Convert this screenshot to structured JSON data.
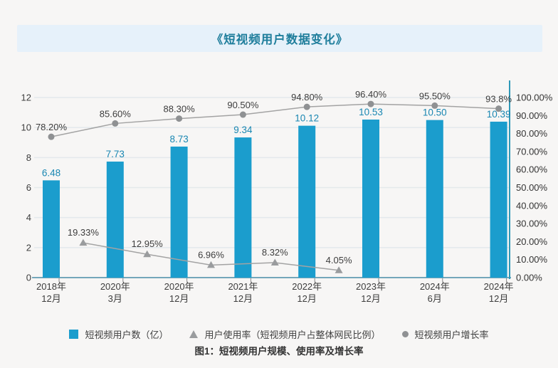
{
  "page": {
    "title": "《短视频用户数据变化》",
    "caption": "图1：短视频用户规模、使用率及增长率"
  },
  "colors": {
    "page_background": "#f7f6f5",
    "title_band_background": "#e6f1fa",
    "title_text": "#1f7e9c",
    "bar_fill": "#1b9dcd",
    "bar_value_label": "#1a87b2",
    "line_stroke": "#a3a3a3",
    "circle_marker": "#8f9193",
    "triangle_marker": "#9a9c9e",
    "gridline": "#e4e9ec",
    "bottom_axis": "#74a7ba",
    "right_axis": "#2f99b8",
    "axis_text": "#3d3d3d",
    "value_label_text": "#3d3d3d"
  },
  "legend": {
    "items": [
      {
        "marker": "square",
        "color": "#1b9dcd",
        "label": "短视频用户数（亿）"
      },
      {
        "marker": "triangle",
        "color": "#9a9c9e",
        "label": "用户使用率（短视频用户占整体网民比例）"
      },
      {
        "marker": "circle",
        "color": "#8f9193",
        "label": "短视频用户增长率"
      }
    ]
  },
  "chart_data": {
    "type": "combo-bar-line",
    "title": "《短视频用户数据变化》",
    "categories": [
      "2018年\n12月",
      "2020年\n3月",
      "2020年\n12月",
      "2021年\n12月",
      "2022年\n12月",
      "2023年\n12月",
      "2024年\n6月",
      "2024年\n12月"
    ],
    "series": [
      {
        "name": "短视频用户数（亿）",
        "type": "bar",
        "axis": "left",
        "color": "#1b9dcd",
        "label_color": "#1a87b2",
        "values": [
          6.48,
          7.73,
          8.73,
          9.34,
          10.12,
          10.53,
          10.5,
          10.39
        ],
        "labels": [
          "6.48",
          "7.73",
          "8.73",
          "9.34",
          "10.12",
          "10.53",
          "10.50",
          "10.39"
        ]
      },
      {
        "name": "短视频用户增长率",
        "type": "line",
        "marker": "circle",
        "axis": "right",
        "color": "#a3a3a3",
        "marker_color": "#8f9193",
        "x_offset": 0,
        "values": [
          78.2,
          85.6,
          88.3,
          90.5,
          94.8,
          96.4,
          95.5,
          93.8
        ],
        "labels": [
          "78.20%",
          "85.60%",
          "88.30%",
          "90.50%",
          "94.80%",
          "96.40%",
          "95.50%",
          "93.8%"
        ]
      },
      {
        "name": "用户使用率（短视频用户占整体网民比例）",
        "type": "line",
        "marker": "triangle",
        "axis": "right",
        "color": "#a3a3a3",
        "marker_color": "#9a9c9e",
        "x_offset": 0.5,
        "values": [
          19.33,
          12.95,
          6.96,
          8.32,
          4.05
        ],
        "labels": [
          "19.33%",
          "12.95%",
          "6.96%",
          "8.32%",
          "4.05%"
        ]
      }
    ],
    "left_axis": {
      "ticks": [
        "0",
        "2",
        "4",
        "6",
        "8",
        "10",
        "12"
      ],
      "min": 0,
      "max": 12
    },
    "right_axis": {
      "ticks": [
        "0.00%",
        "10.00%",
        "20.00%",
        "30.00%",
        "40.00%",
        "50.00%",
        "60.00%",
        "70.00%",
        "80.00%",
        "90.00%",
        "100.00%"
      ],
      "min": 0,
      "max": 100
    },
    "grid": "horizontal",
    "legend_position": "bottom"
  }
}
